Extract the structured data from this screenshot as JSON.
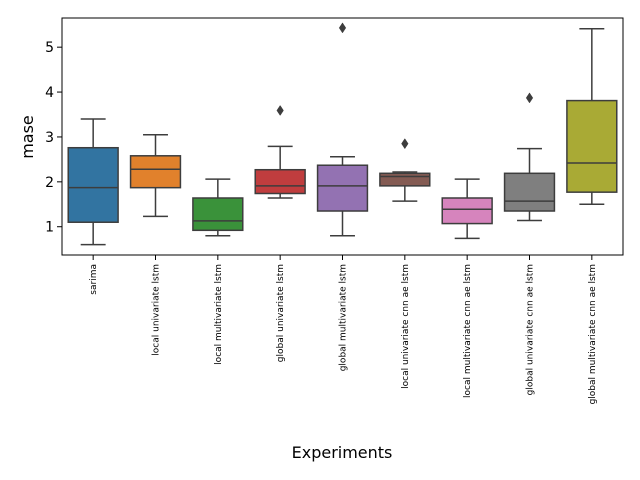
{
  "chart_data": {
    "type": "box",
    "title": "",
    "xlabel": "Experiments",
    "ylabel": "mase",
    "ylim": [
      0.37,
      5.65
    ],
    "yticks": [
      1,
      2,
      3,
      4,
      5
    ],
    "grid": false,
    "categories": [
      "sarima",
      "local univariate lstm",
      "local multivariate lstm",
      "global univariate lstm",
      "global multivariate lstm",
      "local univariate cnn ae lstm",
      "local multivariate cnn ae lstm",
      "global univariate cnn ae lstm",
      "global multivariate cnn ae lstm"
    ],
    "boxes": [
      {
        "min": 0.6,
        "q1": 1.1,
        "median": 1.87,
        "q3": 2.76,
        "max": 3.4,
        "outliers": []
      },
      {
        "min": 1.23,
        "q1": 1.87,
        "median": 2.28,
        "q3": 2.58,
        "max": 3.05,
        "outliers": []
      },
      {
        "min": 0.8,
        "q1": 0.92,
        "median": 1.13,
        "q3": 1.64,
        "max": 2.06,
        "outliers": []
      },
      {
        "min": 1.64,
        "q1": 1.74,
        "median": 1.91,
        "q3": 2.27,
        "max": 2.79,
        "outliers": [
          3.59
        ]
      },
      {
        "min": 0.8,
        "q1": 1.35,
        "median": 1.91,
        "q3": 2.37,
        "max": 2.56,
        "outliers": [
          5.43
        ]
      },
      {
        "min": 1.57,
        "q1": 1.91,
        "median": 2.12,
        "q3": 2.19,
        "max": 2.22,
        "outliers": [
          2.85
        ]
      },
      {
        "min": 0.74,
        "q1": 1.07,
        "median": 1.39,
        "q3": 1.64,
        "max": 2.06,
        "outliers": []
      },
      {
        "min": 1.14,
        "q1": 1.35,
        "median": 1.57,
        "q3": 2.19,
        "max": 2.74,
        "outliers": [
          3.87
        ]
      },
      {
        "min": 1.5,
        "q1": 1.77,
        "median": 2.42,
        "q3": 3.81,
        "max": 5.41,
        "outliers": []
      }
    ],
    "colors": [
      "#3274a1",
      "#e1812c",
      "#3a923a",
      "#c03d3e",
      "#9372b2",
      "#845b53",
      "#d684bd",
      "#7f7f7f",
      "#a9aa35"
    ]
  }
}
